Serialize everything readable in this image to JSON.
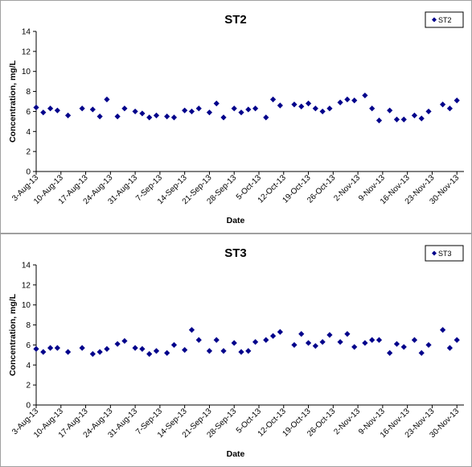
{
  "chart_data": [
    {
      "type": "scatter",
      "title": "ST2",
      "xlabel": "Date",
      "ylabel": "Concentration, mg/L",
      "ylim": [
        0,
        14
      ],
      "yticks": [
        "0",
        "2",
        "4",
        "6",
        "8",
        "10",
        "12",
        "14"
      ],
      "x_tick_labels": [
        "3-Aug-13",
        "10-Aug-13",
        "17-Aug-13",
        "24-Aug-13",
        "31-Aug-13",
        "7-Sep-13",
        "14-Sep-13",
        "21-Sep-13",
        "28-Sep-13",
        "5-Oct-13",
        "12-Oct-13",
        "19-Oct-13",
        "26-Oct-13",
        "2-Nov-13",
        "9-Nov-13",
        "16-Nov-13",
        "23-Nov-13",
        "30-Nov-13"
      ],
      "xlim": [
        "2013-08-03",
        "2013-12-02"
      ],
      "grid": false,
      "legend": "top-right",
      "marker_color": "#00008B",
      "series": [
        {
          "name": "ST2",
          "points": [
            [
              "2013-08-03",
              6.4
            ],
            [
              "2013-08-05",
              5.9
            ],
            [
              "2013-08-07",
              6.3
            ],
            [
              "2013-08-09",
              6.1
            ],
            [
              "2013-08-12",
              5.6
            ],
            [
              "2013-08-16",
              6.3
            ],
            [
              "2013-08-19",
              6.2
            ],
            [
              "2013-08-21",
              5.5
            ],
            [
              "2013-08-23",
              7.2
            ],
            [
              "2013-08-26",
              5.5
            ],
            [
              "2013-08-28",
              6.3
            ],
            [
              "2013-08-31",
              6.0
            ],
            [
              "2013-09-02",
              5.8
            ],
            [
              "2013-09-04",
              5.4
            ],
            [
              "2013-09-06",
              5.6
            ],
            [
              "2013-09-09",
              5.5
            ],
            [
              "2013-09-11",
              5.4
            ],
            [
              "2013-09-14",
              6.1
            ],
            [
              "2013-09-16",
              6.0
            ],
            [
              "2013-09-18",
              6.3
            ],
            [
              "2013-09-21",
              5.9
            ],
            [
              "2013-09-23",
              6.8
            ],
            [
              "2013-09-25",
              5.4
            ],
            [
              "2013-09-28",
              6.3
            ],
            [
              "2013-09-30",
              5.9
            ],
            [
              "2013-10-02",
              6.2
            ],
            [
              "2013-10-04",
              6.3
            ],
            [
              "2013-10-07",
              5.4
            ],
            [
              "2013-10-09",
              7.2
            ],
            [
              "2013-10-11",
              6.6
            ],
            [
              "2013-10-15",
              6.7
            ],
            [
              "2013-10-17",
              6.5
            ],
            [
              "2013-10-19",
              6.8
            ],
            [
              "2013-10-21",
              6.3
            ],
            [
              "2013-10-23",
              6.0
            ],
            [
              "2013-10-25",
              6.3
            ],
            [
              "2013-10-28",
              6.9
            ],
            [
              "2013-10-30",
              7.2
            ],
            [
              "2013-11-01",
              7.1
            ],
            [
              "2013-11-04",
              7.6
            ],
            [
              "2013-11-06",
              6.3
            ],
            [
              "2013-11-08",
              5.1
            ],
            [
              "2013-11-11",
              6.1
            ],
            [
              "2013-11-13",
              5.2
            ],
            [
              "2013-11-15",
              5.2
            ],
            [
              "2013-11-18",
              5.6
            ],
            [
              "2013-11-20",
              5.3
            ],
            [
              "2013-11-22",
              6.0
            ],
            [
              "2013-11-26",
              6.7
            ],
            [
              "2013-11-28",
              6.3
            ],
            [
              "2013-11-30",
              7.1
            ]
          ]
        }
      ]
    },
    {
      "type": "scatter",
      "title": "ST3",
      "xlabel": "Date",
      "ylabel": "Concentration, mg/L",
      "ylim": [
        0,
        14
      ],
      "yticks": [
        "0",
        "2",
        "4",
        "6",
        "8",
        "10",
        "12",
        "14"
      ],
      "x_tick_labels": [
        "3-Aug-13",
        "10-Aug-13",
        "17-Aug-13",
        "24-Aug-13",
        "31-Aug-13",
        "7-Sep-13",
        "14-Sep-13",
        "21-Sep-13",
        "28-Sep-13",
        "5-Oct-13",
        "12-Oct-13",
        "19-Oct-13",
        "26-Oct-13",
        "2-Nov-13",
        "9-Nov-13",
        "16-Nov-13",
        "23-Nov-13",
        "30-Nov-13"
      ],
      "xlim": [
        "2013-08-03",
        "2013-12-02"
      ],
      "grid": false,
      "legend": "top-right",
      "marker_color": "#00008B",
      "series": [
        {
          "name": "ST3",
          "points": [
            [
              "2013-08-03",
              5.6
            ],
            [
              "2013-08-05",
              5.3
            ],
            [
              "2013-08-07",
              5.7
            ],
            [
              "2013-08-09",
              5.7
            ],
            [
              "2013-08-12",
              5.3
            ],
            [
              "2013-08-16",
              5.7
            ],
            [
              "2013-08-19",
              5.1
            ],
            [
              "2013-08-21",
              5.3
            ],
            [
              "2013-08-23",
              5.6
            ],
            [
              "2013-08-26",
              6.1
            ],
            [
              "2013-08-28",
              6.4
            ],
            [
              "2013-08-31",
              5.7
            ],
            [
              "2013-09-02",
              5.6
            ],
            [
              "2013-09-04",
              5.1
            ],
            [
              "2013-09-06",
              5.4
            ],
            [
              "2013-09-09",
              5.2
            ],
            [
              "2013-09-11",
              6.0
            ],
            [
              "2013-09-14",
              5.5
            ],
            [
              "2013-09-16",
              7.5
            ],
            [
              "2013-09-18",
              6.5
            ],
            [
              "2013-09-21",
              5.4
            ],
            [
              "2013-09-23",
              6.5
            ],
            [
              "2013-09-25",
              5.4
            ],
            [
              "2013-09-28",
              6.2
            ],
            [
              "2013-09-30",
              5.3
            ],
            [
              "2013-10-02",
              5.4
            ],
            [
              "2013-10-04",
              6.3
            ],
            [
              "2013-10-07",
              6.5
            ],
            [
              "2013-10-09",
              6.9
            ],
            [
              "2013-10-11",
              7.3
            ],
            [
              "2013-10-15",
              6.0
            ],
            [
              "2013-10-17",
              7.1
            ],
            [
              "2013-10-19",
              6.2
            ],
            [
              "2013-10-21",
              5.9
            ],
            [
              "2013-10-23",
              6.3
            ],
            [
              "2013-10-25",
              7.0
            ],
            [
              "2013-10-28",
              6.3
            ],
            [
              "2013-10-30",
              7.1
            ],
            [
              "2013-11-01",
              5.8
            ],
            [
              "2013-11-04",
              6.2
            ],
            [
              "2013-11-06",
              6.5
            ],
            [
              "2013-11-08",
              6.5
            ],
            [
              "2013-11-11",
              5.2
            ],
            [
              "2013-11-13",
              6.1
            ],
            [
              "2013-11-15",
              5.8
            ],
            [
              "2013-11-18",
              6.5
            ],
            [
              "2013-11-20",
              5.2
            ],
            [
              "2013-11-22",
              6.0
            ],
            [
              "2013-11-26",
              7.5
            ],
            [
              "2013-11-28",
              5.7
            ],
            [
              "2013-11-30",
              6.5
            ]
          ]
        }
      ]
    }
  ]
}
